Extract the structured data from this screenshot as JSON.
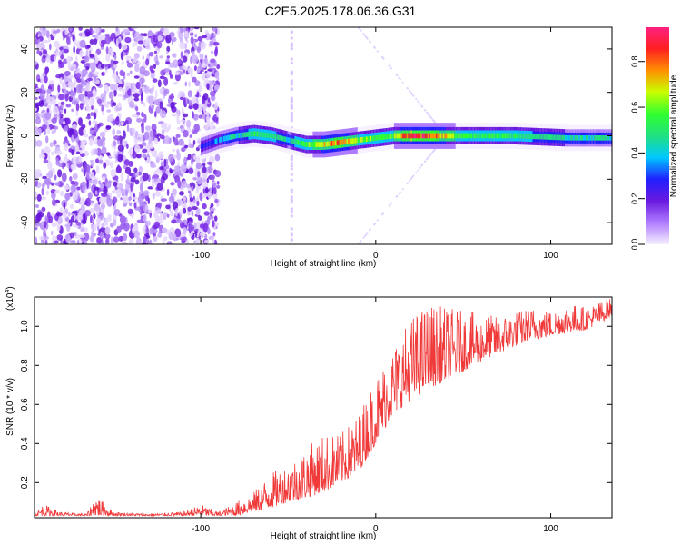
{
  "title": "C2E5.2025.178.06.36.G31",
  "colors": {
    "snr_line": "#f03a3a",
    "colormap": [
      "#f6f0ff",
      "#b07cff",
      "#6a1ae0",
      "#2020ff",
      "#00c8ff",
      "#20e080",
      "#30ff30",
      "#c8ff00",
      "#ff9000",
      "#ff2020",
      "#ff2080"
    ]
  },
  "chart_data": [
    {
      "type": "heatmap",
      "xlabel": "Height of straight line (km)",
      "ylabel": "Frequency (Hz)",
      "xlim": [
        -195,
        135
      ],
      "ylim": [
        -50,
        50
      ],
      "x_ticks": [
        -100,
        0,
        100
      ],
      "y_ticks": [
        -40,
        -20,
        0,
        20,
        40
      ],
      "colorbar": {
        "label": "Normalized spectral amplitude",
        "range": [
          0,
          0.95
        ],
        "ticks": [
          0.0,
          0.2,
          0.4,
          0.6,
          0.8
        ]
      },
      "trace": {
        "x": [
          -100,
          -90,
          -80,
          -70,
          -60,
          -50,
          -40,
          -30,
          -20,
          -10,
          0,
          10,
          20,
          30,
          50,
          80,
          110,
          135
        ],
        "y": [
          -5,
          -2,
          0,
          1,
          0,
          -2,
          -4,
          -4,
          -3,
          -2,
          -1,
          0,
          0,
          0,
          0,
          0,
          -1,
          -1
        ],
        "amplitude": [
          0.3,
          0.35,
          0.45,
          0.5,
          0.5,
          0.45,
          0.55,
          0.7,
          0.75,
          0.6,
          0.55,
          0.6,
          0.85,
          0.8,
          0.55,
          0.5,
          0.45,
          0.45
        ]
      }
    },
    {
      "type": "line",
      "xlabel": "Height of straight line (km)",
      "ylabel": "SNR (10 * v/v)",
      "y_scale_label": "(x10",
      "y_scale_exponent": "4",
      "x_ticks": [
        -100,
        0,
        100
      ],
      "y_ticks": [
        0.2,
        0.4,
        0.6,
        0.8,
        1.0
      ],
      "xlim": [
        -195,
        135
      ],
      "ylim": [
        0.02,
        1.15
      ],
      "envelope": {
        "x": [
          -195,
          -190,
          -180,
          -165,
          -160,
          -150,
          -130,
          -110,
          -100,
          -90,
          -80,
          -70,
          -60,
          -50,
          -40,
          -30,
          -20,
          -10,
          0,
          10,
          20,
          30,
          40,
          50,
          60,
          70,
          80,
          90,
          100,
          110,
          120,
          135
        ],
        "low": [
          0.03,
          0.03,
          0.03,
          0.03,
          0.03,
          0.03,
          0.03,
          0.03,
          0.03,
          0.03,
          0.03,
          0.05,
          0.07,
          0.1,
          0.12,
          0.15,
          0.2,
          0.25,
          0.4,
          0.55,
          0.62,
          0.68,
          0.72,
          0.77,
          0.82,
          0.86,
          0.9,
          0.93,
          0.95,
          0.97,
          0.98,
          1.05
        ],
        "high": [
          0.04,
          0.09,
          0.05,
          0.04,
          0.14,
          0.05,
          0.04,
          0.05,
          0.09,
          0.05,
          0.1,
          0.15,
          0.25,
          0.3,
          0.38,
          0.45,
          0.45,
          0.55,
          0.75,
          0.9,
          1.05,
          1.12,
          1.1,
          1.08,
          1.07,
          1.05,
          1.08,
          1.1,
          1.08,
          1.12,
          1.1,
          1.15
        ]
      }
    }
  ]
}
